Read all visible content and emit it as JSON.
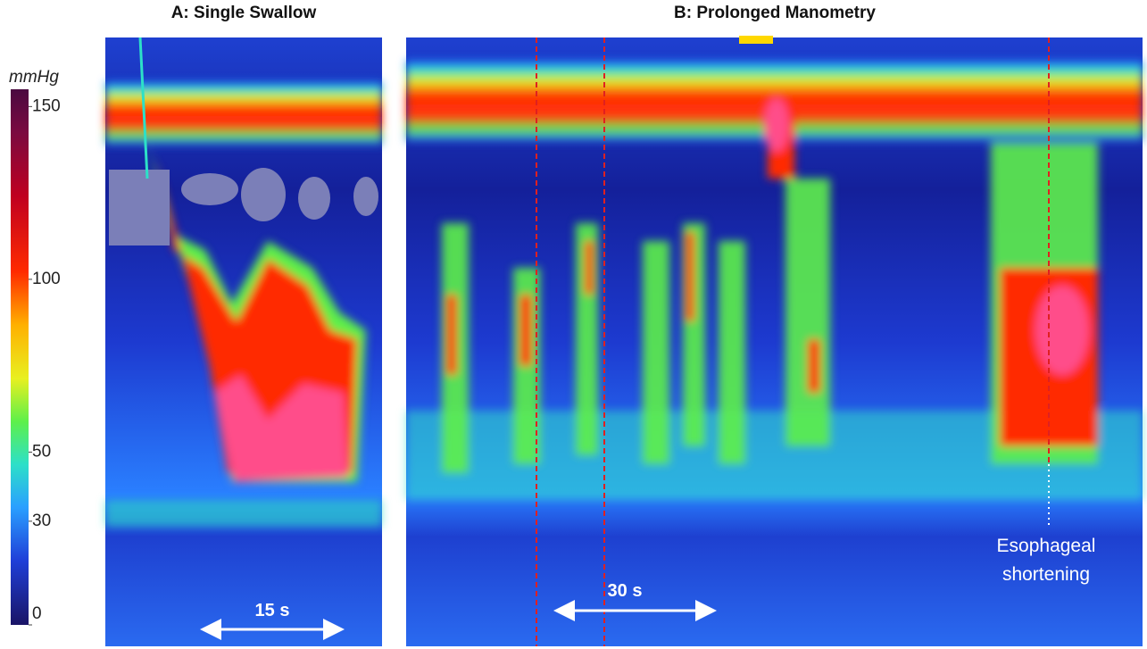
{
  "colorbar": {
    "label": "mmHg",
    "lim": [
      0,
      155
    ],
    "ticks": [
      0,
      30,
      50,
      100,
      150
    ]
  },
  "panels": [
    {
      "title": "A: Single Swallow",
      "scale_label": "15 s"
    },
    {
      "title": "B: Prolonged Manometry",
      "scale_label": "30 s",
      "annotation": [
        "Esophageal",
        "shortening"
      ]
    }
  ]
}
